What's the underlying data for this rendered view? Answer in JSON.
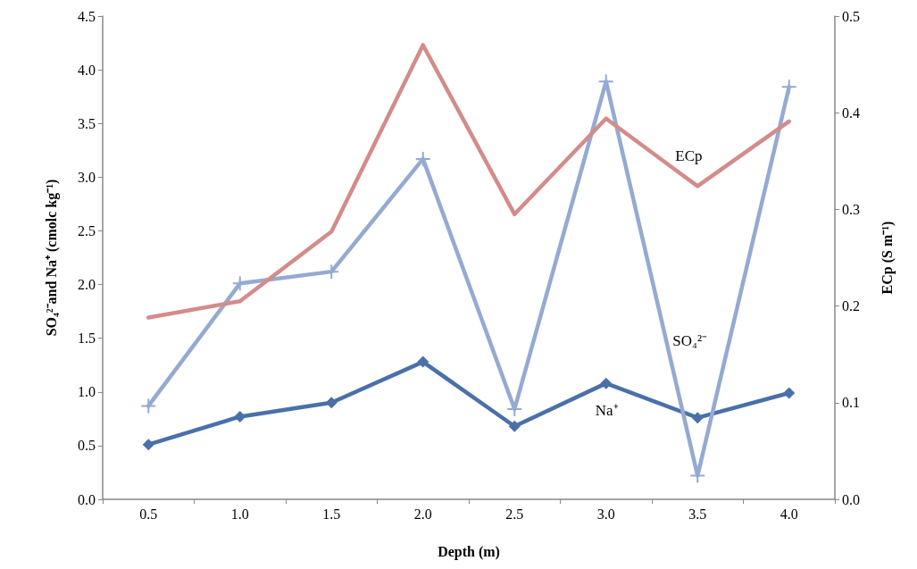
{
  "chart_data": {
    "type": "line",
    "xlabel": "Depth (m)",
    "ylabel": "SO₄²⁻and Na⁺ (cmolc kg⁻¹)",
    "y2label": "ECp (S m⁻¹)",
    "categories": [
      "0.5",
      "1.0",
      "1.5",
      "2.0",
      "2.5",
      "3.0",
      "3.5",
      "4.0"
    ],
    "series": [
      {
        "name": "Na⁺",
        "color": "#4a70aa",
        "marker": "diamond",
        "values": [
          0.51,
          0.77,
          0.9,
          1.28,
          0.68,
          1.08,
          0.76,
          0.99
        ]
      },
      {
        "name": "SO₄²⁻",
        "color": "#94aad2",
        "marker": "cross",
        "values": [
          0.87,
          2.01,
          2.12,
          3.17,
          0.84,
          3.89,
          0.22,
          3.84
        ]
      },
      {
        "name": "ECp",
        "color": "#d38c8a",
        "marker": "none",
        "axis": "y2",
        "values": [
          0.188,
          0.205,
          0.277,
          0.47,
          0.295,
          0.394,
          0.324,
          0.391
        ]
      }
    ],
    "ylim": [
      0,
      4.5
    ],
    "yticks": [
      {
        "value": 0,
        "label": "0.0"
      },
      0.5,
      {
        "value": 1,
        "label": "1.0"
      },
      1.5,
      {
        "value": 2,
        "label": "2.0"
      },
      2.5,
      {
        "value": 3,
        "label": "3.0"
      },
      3.5,
      {
        "value": 4,
        "label": "4.0"
      },
      4.5
    ],
    "y2lim": [
      0,
      0.5
    ],
    "y2ticks": [
      {
        "value": 0,
        "label": "0.0"
      },
      0.1,
      0.2,
      0.3,
      0.4,
      0.5
    ],
    "grid": false,
    "legend": false,
    "line_style": "solid"
  }
}
